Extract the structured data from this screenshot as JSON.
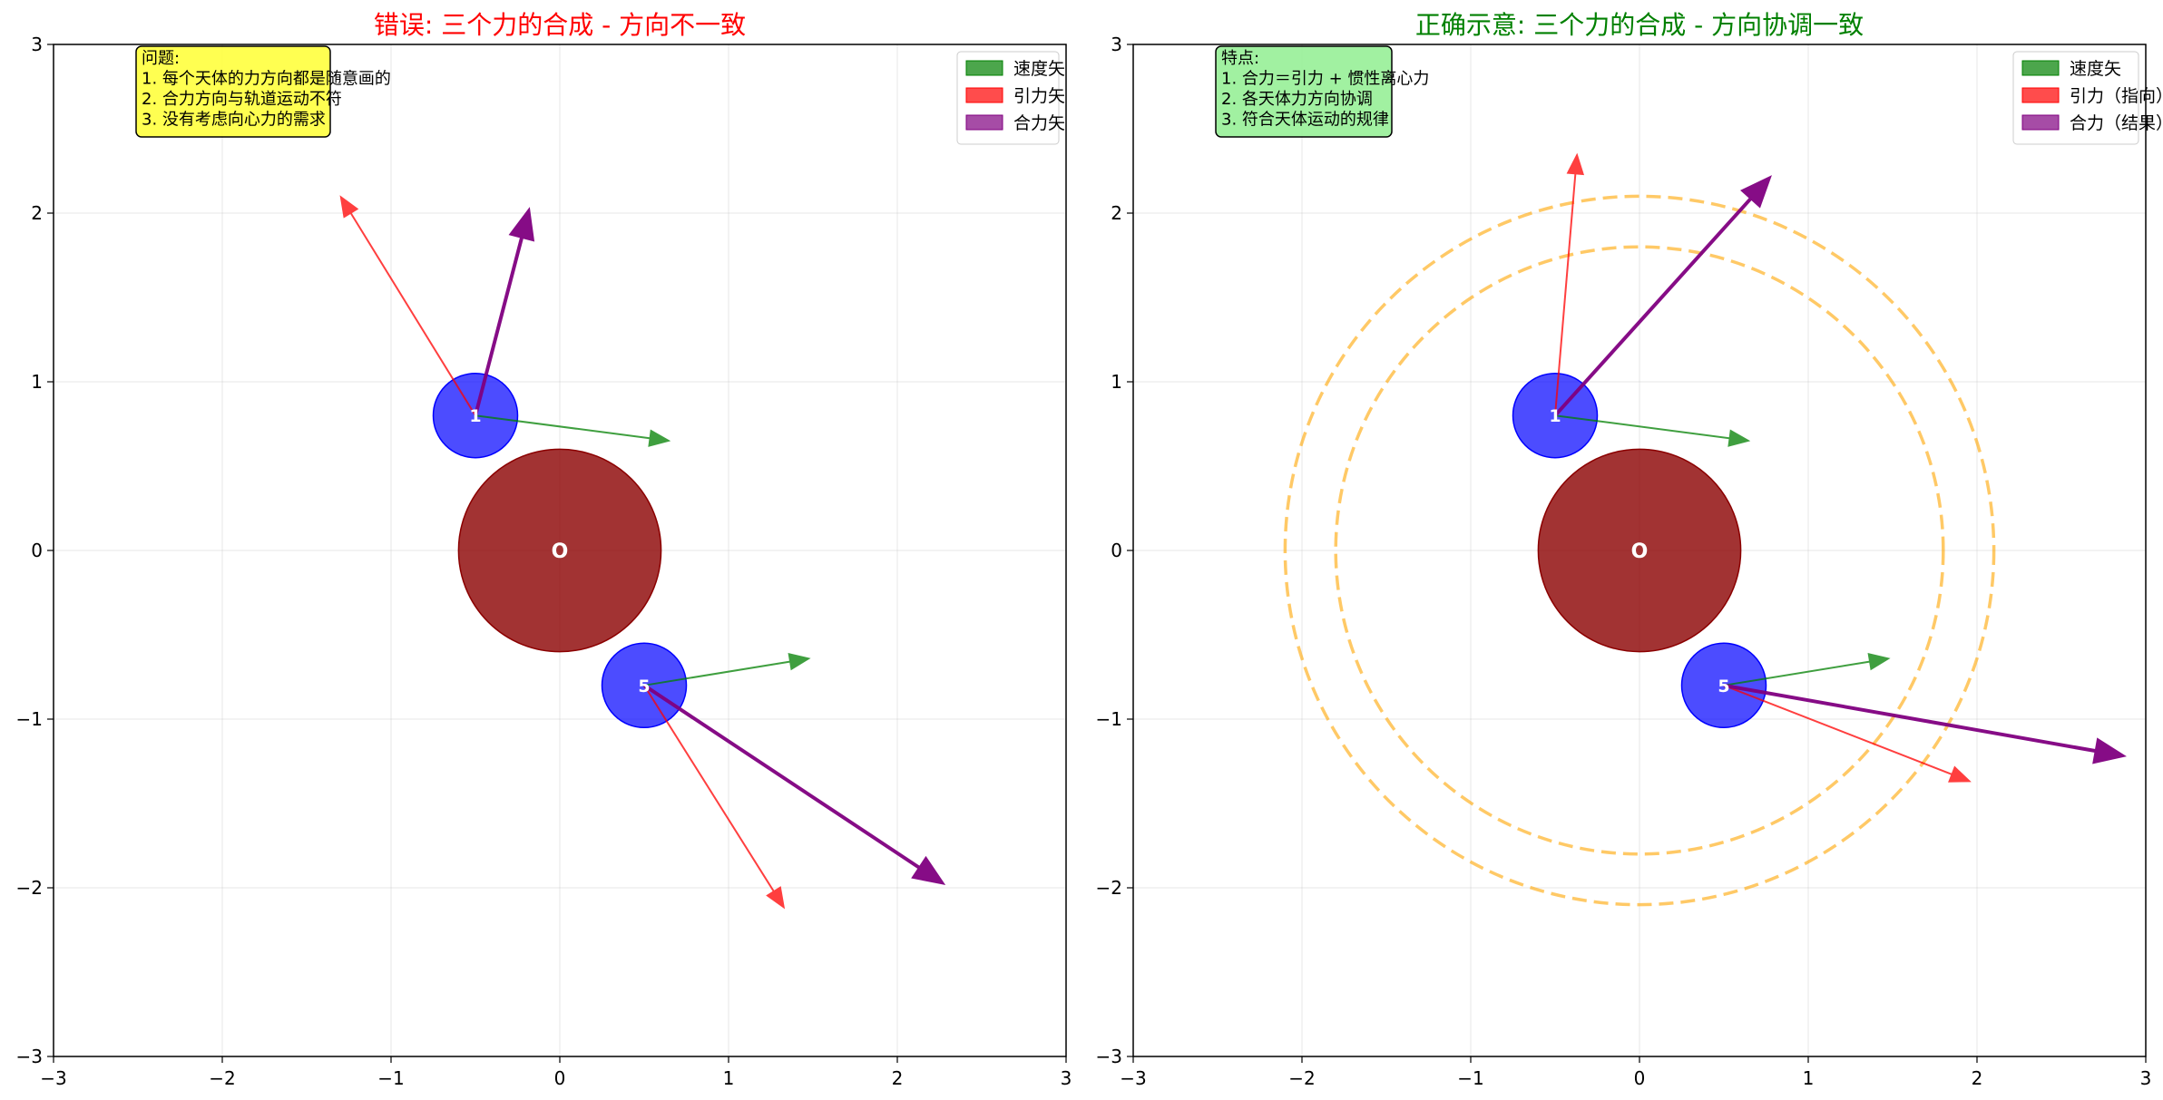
{
  "chart_data": [
    {
      "type": "vector-diagram",
      "title": "错误: 三个力的合成 - 方向不一致",
      "title_color": "#ff0000",
      "xlim": [
        -3,
        3
      ],
      "ylim": [
        -3,
        3
      ],
      "xticks": [
        "−3",
        "−2",
        "−1",
        "0",
        "1",
        "2",
        "3"
      ],
      "yticks": [
        "−3",
        "−2",
        "−1",
        "0",
        "1",
        "2",
        "3"
      ],
      "grid": true,
      "center_body": {
        "label": "O",
        "x": 0,
        "y": 0,
        "r": 0.6,
        "color": "#8b0000"
      },
      "bodies": [
        {
          "label": "1",
          "x": -0.5,
          "y": 0.8,
          "r": 0.25,
          "color": "#0000ff"
        },
        {
          "label": "5",
          "x": 0.5,
          "y": -0.8,
          "r": 0.25,
          "color": "#0000ff"
        }
      ],
      "vectors": [
        {
          "series": 0,
          "x0": -0.5,
          "y0": 0.8,
          "x1": 0.65,
          "y1": 0.65
        },
        {
          "series": 1,
          "x0": -0.5,
          "y0": 0.8,
          "x1": -1.3,
          "y1": 2.1
        },
        {
          "series": 2,
          "x0": -0.5,
          "y0": 0.8,
          "x1": -0.18,
          "y1": 2.03
        },
        {
          "series": 0,
          "x0": 0.5,
          "y0": -0.8,
          "x1": 1.48,
          "y1": -0.64
        },
        {
          "series": 1,
          "x0": 0.5,
          "y0": -0.8,
          "x1": 1.33,
          "y1": -2.12
        },
        {
          "series": 2,
          "x0": 0.5,
          "y0": -0.8,
          "x1": 2.28,
          "y1": -1.98
        }
      ],
      "rings": [],
      "series": [
        {
          "name": "速度矢",
          "color": "#008000"
        },
        {
          "name": "引力矢",
          "color": "#ff0000"
        },
        {
          "name": "合力矢",
          "color": "#800080"
        }
      ],
      "legend_position": "upper right",
      "note": {
        "lines": [
          "问题:",
          "1. 每个天体的力方向都是随意画的",
          "2. 合力方向与轨道运动不符",
          "3. 没有考虑向心力的需求"
        ],
        "background": "#ffff33"
      }
    },
    {
      "type": "vector-diagram",
      "title": "正确示意: 三个力的合成 - 方向协调一致",
      "title_color": "#008000",
      "xlim": [
        -3,
        3
      ],
      "ylim": [
        -3,
        3
      ],
      "xticks": [
        "−3",
        "−2",
        "−1",
        "0",
        "1",
        "2",
        "3"
      ],
      "yticks": [
        "−3",
        "−2",
        "−1",
        "0",
        "1",
        "2",
        "3"
      ],
      "grid": true,
      "center_body": {
        "label": "O",
        "x": 0,
        "y": 0,
        "r": 0.6,
        "color": "#8b0000"
      },
      "bodies": [
        {
          "label": "1",
          "x": -0.5,
          "y": 0.8,
          "r": 0.25,
          "color": "#0000ff"
        },
        {
          "label": "5",
          "x": 0.5,
          "y": -0.8,
          "r": 0.25,
          "color": "#0000ff"
        }
      ],
      "vectors": [
        {
          "series": 0,
          "x0": -0.5,
          "y0": 0.8,
          "x1": 0.65,
          "y1": 0.65
        },
        {
          "series": 1,
          "x0": -0.5,
          "y0": 0.8,
          "x1": -0.37,
          "y1": 2.35
        },
        {
          "series": 2,
          "x0": -0.5,
          "y0": 0.8,
          "x1": 0.78,
          "y1": 2.22
        },
        {
          "series": 0,
          "x0": 0.5,
          "y0": -0.8,
          "x1": 1.48,
          "y1": -0.64
        },
        {
          "series": 1,
          "x0": 0.5,
          "y0": -0.8,
          "x1": 1.96,
          "y1": -1.37
        },
        {
          "series": 2,
          "x0": 0.5,
          "y0": -0.8,
          "x1": 2.88,
          "y1": -1.22
        }
      ],
      "rings": [
        {
          "r": 1.8,
          "color": "#ffa500"
        },
        {
          "r": 2.1,
          "color": "#ffa500"
        }
      ],
      "series": [
        {
          "name": "速度矢",
          "color": "#008000"
        },
        {
          "name": "引力（指向）",
          "color": "#ff0000"
        },
        {
          "name": "合力（结果）",
          "color": "#800080"
        }
      ],
      "legend_position": "upper right",
      "note": {
        "lines": [
          "特点:",
          "1. 合力＝引力 + 惯性离心力",
          "2. 各天体力方向协调",
          "3. 符合天体运动的规律"
        ],
        "background": "#90ee90"
      }
    }
  ]
}
